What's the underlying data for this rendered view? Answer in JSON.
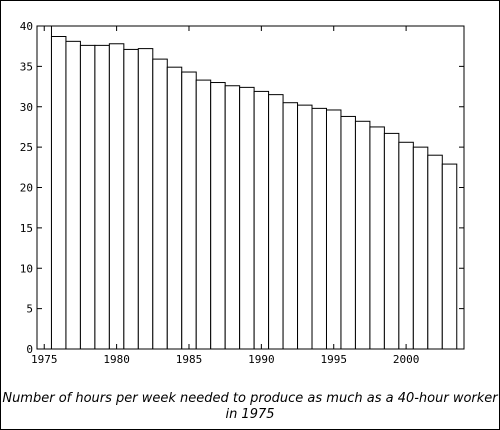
{
  "chart_data": {
    "type": "bar",
    "title": "",
    "xlabel": "",
    "ylabel": "",
    "caption": "Number of hours per week needed to produce as much as a 40-hour worker in 1975",
    "categories": [
      "1975",
      "1976",
      "1977",
      "1978",
      "1979",
      "1980",
      "1981",
      "1982",
      "1983",
      "1984",
      "1985",
      "1986",
      "1987",
      "1988",
      "1989",
      "1990",
      "1991",
      "1992",
      "1993",
      "1994",
      "1995",
      "1996",
      "1997",
      "1998",
      "1999",
      "2000",
      "2001",
      "2002",
      "2003"
    ],
    "values": [
      40.0,
      38.7,
      38.1,
      37.6,
      37.6,
      37.8,
      37.1,
      37.2,
      35.9,
      34.9,
      34.3,
      33.3,
      33.0,
      32.6,
      32.4,
      31.9,
      31.5,
      30.5,
      30.2,
      29.8,
      29.6,
      28.8,
      28.2,
      27.5,
      26.7,
      25.6,
      25.0,
      24.0,
      22.9
    ],
    "xlim": [
      1974.5,
      2004.0
    ],
    "ylim": [
      0,
      40
    ],
    "yticks": [
      0,
      5,
      10,
      15,
      20,
      25,
      30,
      35,
      40
    ],
    "xticks": [
      1975,
      1980,
      1985,
      1990,
      1995,
      2000
    ],
    "grid": false,
    "legend": "none",
    "colors": {
      "bar_fill": "#ffffff",
      "bar_stroke": "#000000",
      "axis": "#000000"
    }
  }
}
